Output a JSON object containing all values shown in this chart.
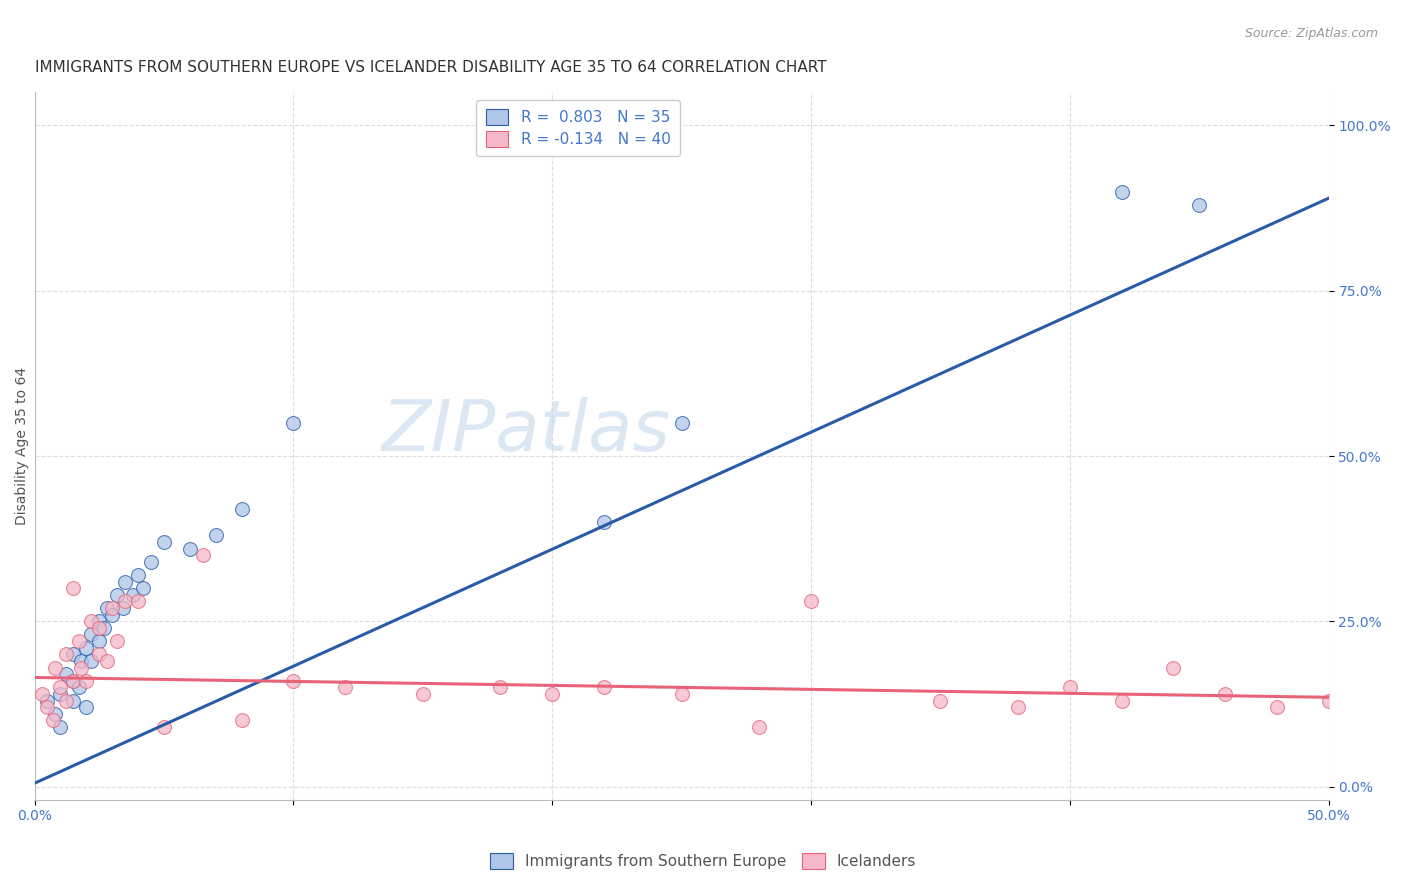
{
  "title": "IMMIGRANTS FROM SOUTHERN EUROPE VS ICELANDER DISABILITY AGE 35 TO 64 CORRELATION CHART",
  "source": "Source: ZipAtlas.com",
  "ylabel": "Disability Age 35 to 64",
  "xlim": [
    0.0,
    0.5
  ],
  "ylim": [
    -0.02,
    1.05
  ],
  "x_ticks": [
    0.0,
    0.1,
    0.2,
    0.3,
    0.4,
    0.5
  ],
  "x_tick_labels": [
    "0.0%",
    "",
    "",
    "",
    "",
    "50.0%"
  ],
  "y_ticks_right": [
    0.0,
    0.25,
    0.5,
    0.75,
    1.0
  ],
  "y_tick_labels_right": [
    "0.0%",
    "25.0%",
    "50.0%",
    "75.0%",
    "100.0%"
  ],
  "blue_R": 0.803,
  "blue_N": 35,
  "pink_R": -0.134,
  "pink_N": 40,
  "blue_color": "#AEC6E8",
  "pink_color": "#F4B8C8",
  "blue_line_color": "#2B5BA8",
  "pink_line_color": "#E8637A",
  "legend_label_blue": "Immigrants from Southern Europe",
  "legend_label_pink": "Icelanders",
  "watermark": "ZIPatlas",
  "blue_scatter_x": [
    0.005,
    0.008,
    0.01,
    0.01,
    0.012,
    0.015,
    0.015,
    0.015,
    0.017,
    0.018,
    0.02,
    0.02,
    0.022,
    0.022,
    0.025,
    0.025,
    0.027,
    0.028,
    0.03,
    0.032,
    0.034,
    0.035,
    0.038,
    0.04,
    0.042,
    0.045,
    0.05,
    0.06,
    0.07,
    0.08,
    0.1,
    0.22,
    0.25,
    0.42,
    0.45
  ],
  "blue_scatter_y": [
    0.13,
    0.11,
    0.09,
    0.14,
    0.17,
    0.13,
    0.16,
    0.2,
    0.15,
    0.19,
    0.12,
    0.21,
    0.23,
    0.19,
    0.22,
    0.25,
    0.24,
    0.27,
    0.26,
    0.29,
    0.27,
    0.31,
    0.29,
    0.32,
    0.3,
    0.34,
    0.37,
    0.36,
    0.38,
    0.42,
    0.55,
    0.4,
    0.55,
    0.9,
    0.88
  ],
  "pink_scatter_x": [
    0.003,
    0.005,
    0.007,
    0.008,
    0.01,
    0.012,
    0.012,
    0.015,
    0.015,
    0.017,
    0.018,
    0.02,
    0.022,
    0.025,
    0.025,
    0.028,
    0.03,
    0.032,
    0.035,
    0.04,
    0.05,
    0.065,
    0.08,
    0.1,
    0.12,
    0.15,
    0.18,
    0.2,
    0.22,
    0.25,
    0.28,
    0.3,
    0.35,
    0.38,
    0.4,
    0.42,
    0.44,
    0.46,
    0.48,
    0.5
  ],
  "pink_scatter_y": [
    0.14,
    0.12,
    0.1,
    0.18,
    0.15,
    0.2,
    0.13,
    0.3,
    0.16,
    0.22,
    0.18,
    0.16,
    0.25,
    0.2,
    0.24,
    0.19,
    0.27,
    0.22,
    0.28,
    0.28,
    0.09,
    0.35,
    0.1,
    0.16,
    0.15,
    0.14,
    0.15,
    0.14,
    0.15,
    0.14,
    0.09,
    0.28,
    0.13,
    0.12,
    0.15,
    0.13,
    0.18,
    0.14,
    0.12,
    0.13
  ],
  "blue_line_x": [
    0.0,
    0.5
  ],
  "blue_line_y": [
    0.005,
    0.89
  ],
  "pink_line_x": [
    0.0,
    0.5
  ],
  "pink_line_y": [
    0.165,
    0.135
  ],
  "grid_color": "#DDDDDD",
  "background_color": "#FFFFFF",
  "title_fontsize": 11,
  "axis_label_fontsize": 10,
  "tick_fontsize": 10,
  "legend_fontsize": 11,
  "watermark_fontsize": 52,
  "watermark_color": "#C5D8EE",
  "watermark_alpha": 0.6,
  "scatter_size": 100,
  "scatter_alpha": 0.75,
  "scatter_linewidth": 0.8
}
